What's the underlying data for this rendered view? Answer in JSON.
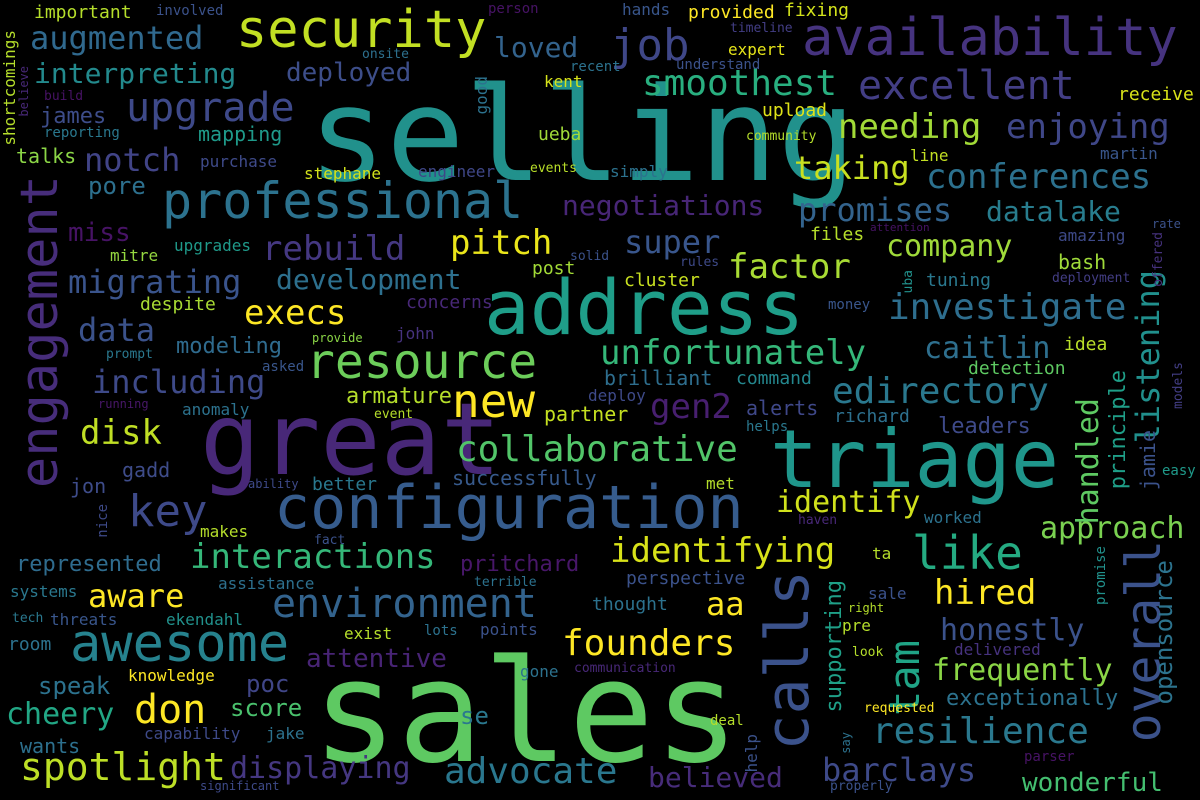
{
  "background": "#000000",
  "palette": {
    "dark_purple": "#440154",
    "indigo": "#3b528b",
    "teal": "#21918c",
    "green": "#5ec962",
    "yellow": "#fde725"
  },
  "words": [
    {
      "text": "sales",
      "color": "#5ec962"
    },
    {
      "text": "selling",
      "color": "#21918c"
    },
    {
      "text": "great",
      "color": "#482878"
    },
    {
      "text": "address",
      "color": "#1f9e89"
    },
    {
      "text": "triage",
      "color": "#1f968b"
    },
    {
      "text": "configuration",
      "color": "#365c8d"
    },
    {
      "text": "engagement",
      "color": "#472d7b"
    },
    {
      "text": "calls",
      "color": "#3b528b"
    },
    {
      "text": "security",
      "color": "#c2df23"
    },
    {
      "text": "availability",
      "color": "#46337f"
    },
    {
      "text": "professional",
      "color": "#2c728e"
    },
    {
      "text": "awesome",
      "color": "#26828e"
    },
    {
      "text": "resource",
      "color": "#6ccd5a"
    },
    {
      "text": "overall",
      "color": "#3b528b"
    },
    {
      "text": "environment",
      "color": "#33638d"
    },
    {
      "text": "like",
      "color": "#25ab82"
    },
    {
      "text": "new",
      "color": "#fde725"
    },
    {
      "text": "upgrade",
      "color": "#3e4989"
    },
    {
      "text": "excellent",
      "color": "#433e85"
    },
    {
      "text": "job",
      "color": "#3f4788"
    },
    {
      "text": "key",
      "color": "#3e4a89"
    },
    {
      "text": "tam",
      "color": "#20a486"
    },
    {
      "text": "smoothest",
      "color": "#29af7f"
    },
    {
      "text": "founders",
      "color": "#fde725"
    },
    {
      "text": "identifying",
      "color": "#d8e219"
    },
    {
      "text": "unfortunately",
      "color": "#35b779"
    },
    {
      "text": "collaborative",
      "color": "#52c569"
    },
    {
      "text": "interactions",
      "color": "#35b779"
    },
    {
      "text": "investigate",
      "color": "#2e6e8e"
    },
    {
      "text": "edirectory",
      "color": "#2a788e"
    },
    {
      "text": "resilience",
      "color": "#2a788e"
    },
    {
      "text": "spotlight",
      "color": "#bddf26"
    },
    {
      "text": "advocate",
      "color": "#2a778e"
    },
    {
      "text": "displaying",
      "color": "#453781"
    },
    {
      "text": "don",
      "color": "#fde725"
    },
    {
      "text": "augmented",
      "color": "#30698e"
    },
    {
      "text": "interpreting",
      "color": "#238a8d"
    },
    {
      "text": "migrating",
      "color": "#3a548c"
    },
    {
      "text": "data",
      "color": "#3b528b"
    },
    {
      "text": "including",
      "color": "#3e4a89"
    },
    {
      "text": "disk",
      "color": "#c0df25"
    },
    {
      "text": "notch",
      "color": "#414487"
    },
    {
      "text": "pore",
      "color": "#2d708e"
    },
    {
      "text": "rebuild",
      "color": "#453882"
    },
    {
      "text": "pitch",
      "color": "#eae51a"
    },
    {
      "text": "execs",
      "color": "#fde725"
    },
    {
      "text": "development",
      "color": "#2d708e"
    },
    {
      "text": "super",
      "color": "#39568c"
    },
    {
      "text": "factor",
      "color": "#a8db34"
    },
    {
      "text": "company",
      "color": "#9fda3a"
    },
    {
      "text": "needing",
      "color": "#a2da37"
    },
    {
      "text": "enjoying",
      "color": "#3f4788"
    },
    {
      "text": "conferences",
      "color": "#2c718e"
    },
    {
      "text": "promises",
      "color": "#33638d"
    },
    {
      "text": "datalake",
      "color": "#287d8e"
    },
    {
      "text": "taking",
      "color": "#c8e020"
    },
    {
      "text": "negotiations",
      "color": "#482677"
    },
    {
      "text": "listening",
      "color": "#21908d"
    },
    {
      "text": "caitlin",
      "color": "#2e6f8e"
    },
    {
      "text": "gen2",
      "color": "#481f70"
    },
    {
      "text": "identify",
      "color": "#d0e11c"
    },
    {
      "text": "approach",
      "color": "#7ad151"
    },
    {
      "text": "handled",
      "color": "#5ec962"
    },
    {
      "text": "hired",
      "color": "#fde725"
    },
    {
      "text": "aware",
      "color": "#fde725"
    },
    {
      "text": "aa",
      "color": "#fde725"
    },
    {
      "text": "honestly",
      "color": "#3b528b"
    },
    {
      "text": "frequently",
      "color": "#8bd646"
    },
    {
      "text": "barclays",
      "color": "#3e4a89"
    },
    {
      "text": "believed",
      "color": "#472c7a"
    },
    {
      "text": "attentive",
      "color": "#482475"
    },
    {
      "text": "exceptionally",
      "color": "#2c728e"
    },
    {
      "text": "wonderful",
      "color": "#44bf70"
    },
    {
      "text": "opensource",
      "color": "#2c738e"
    },
    {
      "text": "supporting",
      "color": "#1fa088"
    },
    {
      "text": "principle",
      "color": "#1f9f88"
    },
    {
      "text": "jamie",
      "color": "#3b528b"
    },
    {
      "text": "cheery",
      "color": "#22a785"
    },
    {
      "text": "speak",
      "color": "#2c728e"
    },
    {
      "text": "wants",
      "color": "#2d708e"
    },
    {
      "text": "represented",
      "color": "#2f6c8e"
    },
    {
      "text": "poc",
      "color": "#404688"
    },
    {
      "text": "score",
      "color": "#4ac16d"
    },
    {
      "text": "se",
      "color": "#2a788e"
    },
    {
      "text": "james",
      "color": "#3d4d8a"
    },
    {
      "text": "talks",
      "color": "#8bd646"
    },
    {
      "text": "mapping",
      "color": "#1f9a8a"
    },
    {
      "text": "deployed",
      "color": "#3d4e8a"
    },
    {
      "text": "loved",
      "color": "#33638d"
    },
    {
      "text": "miss",
      "color": "#471365"
    },
    {
      "text": "pritchard",
      "color": "#481769"
    },
    {
      "text": "successfully",
      "color": "#375a8c"
    },
    {
      "text": "jon",
      "color": "#3e4c8a"
    },
    {
      "text": "gadd",
      "color": "#3e4c8a"
    },
    {
      "text": "modeling",
      "color": "#2f6b8e"
    },
    {
      "text": "armature",
      "color": "#b5de2b"
    },
    {
      "text": "partner",
      "color": "#c5e021"
    },
    {
      "text": "brilliant",
      "color": "#2e6e8e"
    },
    {
      "text": "command",
      "color": "#24878e"
    },
    {
      "text": "alerts",
      "color": "#3f4889"
    },
    {
      "text": "detection",
      "color": "#5ec962"
    },
    {
      "text": "leaders",
      "color": "#3e4a89"
    },
    {
      "text": "richard",
      "color": "#2d708e"
    },
    {
      "text": "idea",
      "color": "#b8de29"
    },
    {
      "text": "bash",
      "color": "#9fda3a"
    },
    {
      "text": "tuning",
      "color": "#2a788e"
    },
    {
      "text": "amazing",
      "color": "#3e4a89"
    },
    {
      "text": "files",
      "color": "#b5de2b"
    },
    {
      "text": "post",
      "color": "#a2da37"
    },
    {
      "text": "cluster",
      "color": "#c8e020"
    },
    {
      "text": "concerns",
      "color": "#482878"
    },
    {
      "text": "despite",
      "color": "#a8db34"
    },
    {
      "text": "mitre",
      "color": "#95d840"
    },
    {
      "text": "upgrades",
      "color": "#1f9a8a"
    },
    {
      "text": "purchase",
      "color": "#3e4a89"
    },
    {
      "text": "stephane",
      "color": "#d2e21b"
    },
    {
      "text": "engineer",
      "color": "#3f4788"
    },
    {
      "text": "events",
      "color": "#b8de29"
    },
    {
      "text": "simply",
      "color": "#2c728e"
    },
    {
      "text": "line",
      "color": "#c2df23"
    },
    {
      "text": "martin",
      "color": "#39568c"
    },
    {
      "text": "receive",
      "color": "#d8e219"
    },
    {
      "text": "upload",
      "color": "#dfe318"
    },
    {
      "text": "ueba",
      "color": "#a0da39"
    },
    {
      "text": "kent",
      "color": "#d5e21a"
    },
    {
      "text": "expert",
      "color": "#e5e419"
    },
    {
      "text": "provided",
      "color": "#fde725"
    },
    {
      "text": "fixing",
      "color": "#d2e21b"
    },
    {
      "text": "hands",
      "color": "#39568c"
    },
    {
      "text": "person",
      "color": "#471365"
    },
    {
      "text": "important",
      "color": "#b5de2b"
    },
    {
      "text": "involved",
      "color": "#3b528b"
    },
    {
      "text": "shortcomings",
      "color": "#b5de2b"
    },
    {
      "text": "believe",
      "color": "#482878"
    },
    {
      "text": "build",
      "color": "#471365"
    },
    {
      "text": "reporting",
      "color": "#2a788e"
    },
    {
      "text": "onsite",
      "color": "#2d708e"
    },
    {
      "text": "recent",
      "color": "#2c728e"
    },
    {
      "text": "understand",
      "color": "#3b528b"
    },
    {
      "text": "timeline",
      "color": "#433e85"
    },
    {
      "text": "community",
      "color": "#b5de2b"
    },
    {
      "text": "good",
      "color": "#2c728e"
    },
    {
      "text": "prompt",
      "color": "#2a788e"
    },
    {
      "text": "running",
      "color": "#481769"
    },
    {
      "text": "asked",
      "color": "#39568c"
    },
    {
      "text": "provide",
      "color": "#8bd646"
    },
    {
      "text": "john",
      "color": "#46327e"
    },
    {
      "text": "solid",
      "color": "#3b528b"
    },
    {
      "text": "rules",
      "color": "#3e4a89"
    },
    {
      "text": "uba",
      "color": "#21918c"
    },
    {
      "text": "money",
      "color": "#39568c"
    },
    {
      "text": "deployment",
      "color": "#433e85"
    },
    {
      "text": "offered",
      "color": "#46327e"
    },
    {
      "text": "rate",
      "color": "#3b528b"
    },
    {
      "text": "attention",
      "color": "#471365"
    },
    {
      "text": "anomaly",
      "color": "#2c728e"
    },
    {
      "text": "deploy",
      "color": "#3e4a89"
    },
    {
      "text": "event",
      "color": "#b5de2b"
    },
    {
      "text": "helps",
      "color": "#2a788e"
    },
    {
      "text": "models",
      "color": "#433e85"
    },
    {
      "text": "easy",
      "color": "#1f9a8a"
    },
    {
      "text": "ability",
      "color": "#3e4a89"
    },
    {
      "text": "better",
      "color": "#2a788e"
    },
    {
      "text": "met",
      "color": "#b5de2b"
    },
    {
      "text": "nice",
      "color": "#3e4a89"
    },
    {
      "text": "fact",
      "color": "#3b528b"
    },
    {
      "text": "makes",
      "color": "#b5de2b"
    },
    {
      "text": "haven",
      "color": "#482878"
    },
    {
      "text": "worked",
      "color": "#2c728e"
    },
    {
      "text": "ta",
      "color": "#b5de2b"
    },
    {
      "text": "terrible",
      "color": "#2c728e"
    },
    {
      "text": "perspective",
      "color": "#3b528b"
    },
    {
      "text": "assistance",
      "color": "#2d708e"
    },
    {
      "text": "systems",
      "color": "#2a788e"
    },
    {
      "text": "tech",
      "color": "#2a788e"
    },
    {
      "text": "threats",
      "color": "#39568c"
    },
    {
      "text": "ekendahl",
      "color": "#21918c"
    },
    {
      "text": "thought",
      "color": "#2c728e"
    },
    {
      "text": "sale",
      "color": "#3b528b"
    },
    {
      "text": "right",
      "color": "#b5de2b"
    },
    {
      "text": "pre",
      "color": "#b5de2b"
    },
    {
      "text": "promise",
      "color": "#21918c"
    },
    {
      "text": "room",
      "color": "#2c728e"
    },
    {
      "text": "exist",
      "color": "#b5de2b"
    },
    {
      "text": "lots",
      "color": "#2c728e"
    },
    {
      "text": "points",
      "color": "#3b528b"
    },
    {
      "text": "gone",
      "color": "#2c728e"
    },
    {
      "text": "communication",
      "color": "#482878"
    },
    {
      "text": "look",
      "color": "#b5de2b"
    },
    {
      "text": "delivered",
      "color": "#46327e"
    },
    {
      "text": "knowledge",
      "color": "#fde725"
    },
    {
      "text": "requested",
      "color": "#fde725"
    },
    {
      "text": "deal",
      "color": "#b5de2b"
    },
    {
      "text": "help",
      "color": "#3b528b"
    },
    {
      "text": "say",
      "color": "#2c728e"
    },
    {
      "text": "capability",
      "color": "#3e4a89"
    },
    {
      "text": "jake",
      "color": "#2c728e"
    },
    {
      "text": "significant",
      "color": "#3e4a89"
    },
    {
      "text": "properly",
      "color": "#3b528b"
    },
    {
      "text": "parser",
      "color": "#471365"
    }
  ]
}
